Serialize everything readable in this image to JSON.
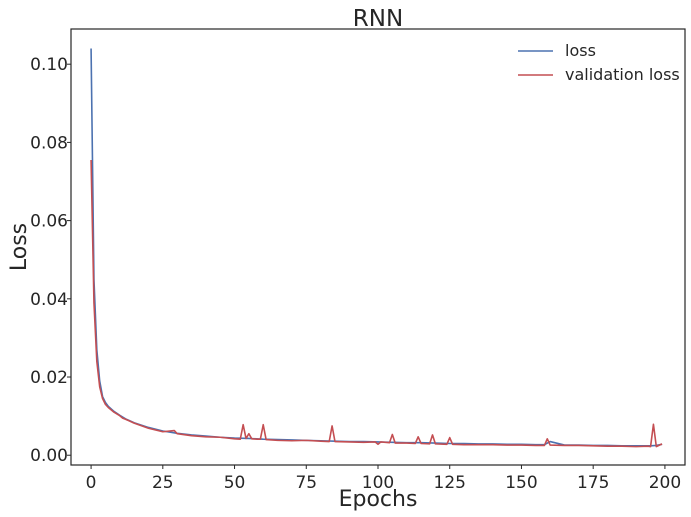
{
  "chart_data": {
    "type": "line",
    "title": "RNN",
    "xlabel": "Epochs",
    "ylabel": "Loss",
    "xlim": [
      -7,
      207
    ],
    "ylim": [
      -0.0025,
      0.109
    ],
    "xticks": [
      0,
      25,
      50,
      75,
      100,
      125,
      150,
      175,
      200
    ],
    "yticks": [
      0.0,
      0.02,
      0.04,
      0.06,
      0.08,
      0.1
    ],
    "ytick_labels": [
      "0.00",
      "0.02",
      "0.04",
      "0.06",
      "0.08",
      "0.10"
    ],
    "grid": false,
    "legend_position": "top-right",
    "series": [
      {
        "name": "loss",
        "color": "#4c72b0",
        "x": [
          0,
          1,
          2,
          3,
          4,
          5,
          6,
          8,
          10,
          12,
          15,
          20,
          25,
          30,
          35,
          40,
          45,
          50,
          55,
          60,
          65,
          70,
          75,
          80,
          85,
          90,
          95,
          100,
          105,
          110,
          115,
          120,
          125,
          130,
          135,
          140,
          145,
          150,
          155,
          158,
          160,
          165,
          170,
          175,
          180,
          185,
          190,
          193,
          195,
          197,
          199
        ],
        "values": [
          0.104,
          0.045,
          0.027,
          0.019,
          0.015,
          0.0135,
          0.0125,
          0.0112,
          0.0102,
          0.0093,
          0.0083,
          0.0071,
          0.0062,
          0.0056,
          0.0052,
          0.0049,
          0.0046,
          0.0044,
          0.0043,
          0.0041,
          0.004,
          0.0039,
          0.0038,
          0.0037,
          0.0036,
          0.0035,
          0.0035,
          0.0034,
          0.0033,
          0.0032,
          0.0032,
          0.0031,
          0.003,
          0.003,
          0.0029,
          0.0029,
          0.0028,
          0.0028,
          0.0027,
          0.0027,
          0.0035,
          0.0026,
          0.0026,
          0.0025,
          0.0025,
          0.0024,
          0.0024,
          0.0024,
          0.0024,
          0.0025,
          0.0028
        ]
      },
      {
        "name": "validation loss",
        "color": "#c44e52",
        "x": [
          0,
          1,
          2,
          3,
          4,
          5,
          6,
          8,
          10,
          11,
          12,
          15,
          20,
          25,
          29,
          30,
          35,
          40,
          45,
          50,
          52,
          53,
          54,
          55,
          56,
          58,
          59,
          60,
          61,
          65,
          70,
          75,
          80,
          83,
          84,
          85,
          90,
          95,
          99,
          100,
          101,
          104,
          105,
          106,
          110,
          113,
          114,
          115,
          118,
          119,
          120,
          124,
          125,
          126,
          130,
          135,
          140,
          145,
          150,
          155,
          158,
          159,
          160,
          165,
          170,
          175,
          180,
          185,
          190,
          194,
          195,
          196,
          197,
          199
        ],
        "values": [
          0.0755,
          0.039,
          0.024,
          0.0175,
          0.0145,
          0.013,
          0.0122,
          0.011,
          0.0101,
          0.0095,
          0.0092,
          0.0082,
          0.0069,
          0.006,
          0.0063,
          0.0055,
          0.005,
          0.0047,
          0.0046,
          0.0042,
          0.0041,
          0.0078,
          0.0043,
          0.0055,
          0.0042,
          0.0041,
          0.0041,
          0.0078,
          0.004,
          0.0038,
          0.0037,
          0.0038,
          0.0036,
          0.0035,
          0.0075,
          0.0035,
          0.0034,
          0.0033,
          0.0034,
          0.0028,
          0.0034,
          0.0032,
          0.0053,
          0.0031,
          0.0031,
          0.003,
          0.0047,
          0.003,
          0.0029,
          0.0052,
          0.0029,
          0.0028,
          0.0045,
          0.0028,
          0.0027,
          0.0027,
          0.0027,
          0.0026,
          0.0026,
          0.0025,
          0.0025,
          0.0042,
          0.0026,
          0.0025,
          0.0025,
          0.0024,
          0.0023,
          0.0023,
          0.0022,
          0.0023,
          0.0022,
          0.0079,
          0.0022,
          0.0029
        ]
      }
    ]
  }
}
